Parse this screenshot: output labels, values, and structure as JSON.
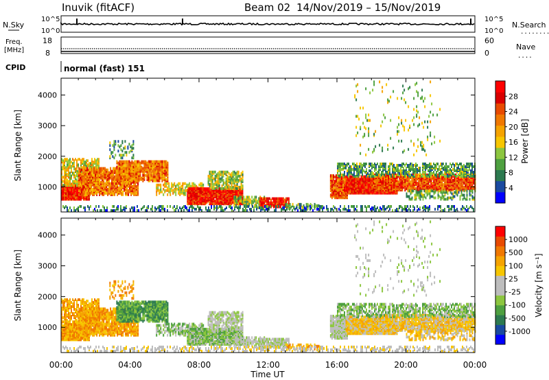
{
  "header": {
    "station": "Inuvik (fitACF)",
    "beam": "Beam 02",
    "dates": "14/Nov/2019 – 15/Nov/2019"
  },
  "strip": {
    "nsky_label": "N.Sky",
    "nsearch_label": "N.Search",
    "noise_top": "10^5",
    "noise_bottom": "10^0",
    "freq_label_1": "Freq.",
    "freq_label_2": "[MHz]",
    "freq_top": "18",
    "freq_bottom": "8",
    "nave_label": "Nave",
    "nave_top": "60",
    "nave_bottom": "0",
    "cpid_label": "CPID",
    "cpid_value": "normal (fast) 151",
    "nsearch_dots": "........",
    "nave_dots": "...."
  },
  "colors": {
    "power_scale": [
      "#0000ff",
      "#1a4aa0",
      "#2d7a50",
      "#4ea040",
      "#8cc63f",
      "#f7c600",
      "#f5a300",
      "#f07800",
      "#e84a00",
      "#d90000",
      "#ff0000"
    ],
    "velocity_scale": [
      "#ff0000",
      "#e84a00",
      "#f07800",
      "#f5a300",
      "#f7c600",
      "#bdbdbd",
      "#bdbdbd",
      "#8cc63f",
      "#4ea040",
      "#2d7a50",
      "#1a4aa0",
      "#0000ff"
    ]
  },
  "chart_data": [
    {
      "type": "heatmap",
      "name": "power",
      "ylabel": "Slant Range [km]",
      "yticks": [
        "1000",
        "2000",
        "3000",
        "4000"
      ],
      "ylim": [
        180,
        4550
      ],
      "colorbar_label": "Power [dB]",
      "colorbar_ticks": [
        "4",
        "8",
        "12",
        "16",
        "20",
        "24",
        "28"
      ],
      "xticks": [
        "00:00",
        "04:00",
        "08:00",
        "12:00",
        "16:00",
        "20:00",
        "00:00"
      ],
      "xlim_hours": [
        0,
        24
      ]
    },
    {
      "type": "heatmap",
      "name": "velocity",
      "ylabel": "Slant Range [km]",
      "yticks": [
        "1000",
        "2000",
        "3000",
        "4000"
      ],
      "ylim": [
        180,
        4550
      ],
      "colorbar_label": "Velocity [m s⁻¹]",
      "colorbar_ticks": [
        "1000",
        "500",
        "100",
        "25",
        "-25",
        "-100",
        "-500",
        "-1000"
      ],
      "xticks": [
        "00:00",
        "04:00",
        "08:00",
        "12:00",
        "16:00",
        "20:00",
        "00:00"
      ],
      "xlabel": "Time UT",
      "xlim_hours": [
        0,
        24
      ]
    }
  ]
}
